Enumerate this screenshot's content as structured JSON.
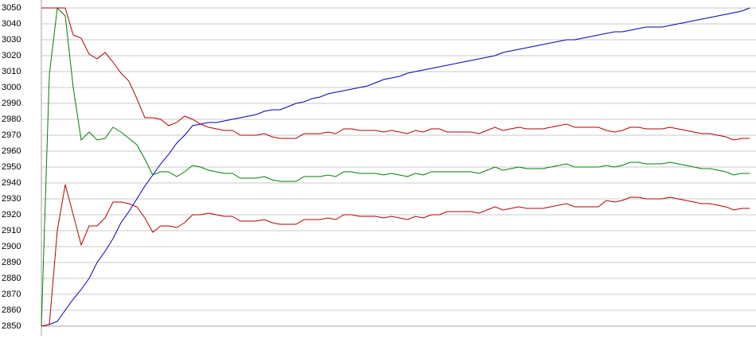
{
  "chart_data": {
    "type": "line",
    "categories": [
      null,
      null,
      null,
      null,
      null,
      null,
      null,
      null,
      null,
      null,
      null,
      null,
      null,
      null,
      null,
      null,
      null,
      null,
      null,
      null,
      null,
      null,
      null,
      null,
      null,
      null,
      null,
      null,
      null,
      null,
      null,
      null,
      null,
      null,
      null,
      null,
      null,
      null,
      null,
      null,
      null,
      null,
      null,
      null,
      null,
      null,
      null,
      null,
      null,
      null,
      null,
      null,
      null,
      null,
      null,
      null,
      null,
      null,
      null,
      null,
      null,
      null,
      null,
      null,
      null,
      null,
      null,
      null,
      null,
      null,
      null,
      null,
      null,
      null,
      null,
      null,
      null,
      null,
      null,
      null,
      null,
      null,
      null,
      null,
      null,
      null,
      null,
      null,
      null,
      null
    ],
    "series": [
      {
        "color": "#0000b4",
        "values": [
          2850,
          2851,
          2853,
          2860,
          2867,
          2873,
          2880,
          2890,
          2897,
          2905,
          2915,
          2922,
          2930,
          2938,
          2945,
          2952,
          2958,
          2965,
          2970,
          2976,
          2977,
          2978,
          2978,
          2979,
          2980,
          2981,
          2982,
          2983,
          2985,
          2986,
          2986,
          2988,
          2990,
          2991,
          2993,
          2994,
          2996,
          2997,
          2998,
          2999,
          3000,
          3001,
          3003,
          3005,
          3006,
          3007,
          3009,
          3010,
          3011,
          3012,
          3013,
          3014,
          3015,
          3016,
          3017,
          3018,
          3019,
          3020,
          3022,
          3023,
          3024,
          3025,
          3026,
          3027,
          3028,
          3029,
          3030,
          3030,
          3031,
          3032,
          3033,
          3034,
          3035,
          3035,
          3036,
          3037,
          3038,
          3038,
          3038,
          3039,
          3040,
          3041,
          3042,
          3043,
          3044,
          3045,
          3046,
          3047,
          3048,
          3050
        ]
      },
      {
        "color": "#008000",
        "values": [
          2850,
          3008,
          3050,
          3045,
          3000,
          2967,
          2972,
          2967,
          2968,
          2975,
          2972,
          2968,
          2964,
          2955,
          2945,
          2947,
          2947,
          2944,
          2947,
          2951,
          2950,
          2948,
          2947,
          2946,
          2946,
          2943,
          2943,
          2943,
          2944,
          2942,
          2941,
          2941,
          2941,
          2944,
          2944,
          2944,
          2945,
          2944,
          2947,
          2947,
          2946,
          2946,
          2946,
          2945,
          2946,
          2945,
          2944,
          2946,
          2945,
          2947,
          2947,
          2947,
          2947,
          2947,
          2947,
          2946,
          2948,
          2950,
          2948,
          2949,
          2950,
          2949,
          2949,
          2949,
          2950,
          2951,
          2952,
          2950,
          2950,
          2950,
          2950,
          2951,
          2950,
          2951,
          2953,
          2953,
          2952,
          2952,
          2952,
          2953,
          2952,
          2951,
          2950,
          2949,
          2949,
          2948,
          2947,
          2945,
          2946,
          2946
        ]
      },
      {
        "color": "#b40000",
        "values": [
          3050,
          3050,
          3050,
          3050,
          3033,
          3031,
          3021,
          3018,
          3022,
          3016,
          3009,
          3004,
          2993,
          2981,
          2981,
          2980,
          2976,
          2978,
          2982,
          2980,
          2977,
          2975,
          2974,
          2973,
          2973,
          2970,
          2970,
          2970,
          2971,
          2969,
          2968,
          2968,
          2968,
          2971,
          2971,
          2971,
          2972,
          2971,
          2974,
          2974,
          2973,
          2973,
          2973,
          2972,
          2973,
          2972,
          2971,
          2973,
          2972,
          2974,
          2974,
          2972,
          2972,
          2972,
          2972,
          2971,
          2973,
          2975,
          2973,
          2974,
          2975,
          2974,
          2974,
          2974,
          2975,
          2976,
          2977,
          2975,
          2975,
          2975,
          2975,
          2973,
          2972,
          2973,
          2975,
          2975,
          2974,
          2974,
          2974,
          2975,
          2974,
          2973,
          2972,
          2971,
          2971,
          2970,
          2969,
          2967,
          2968,
          2968
        ]
      },
      {
        "color": "#b40000",
        "values": [
          2850,
          2851,
          2910,
          2939,
          2920,
          2901,
          2913,
          2913,
          2918,
          2928,
          2928,
          2927,
          2925,
          2918,
          2909,
          2913,
          2913,
          2912,
          2915,
          2920,
          2920,
          2921,
          2920,
          2919,
          2919,
          2916,
          2916,
          2916,
          2917,
          2915,
          2914,
          2914,
          2914,
          2917,
          2917,
          2917,
          2918,
          2917,
          2920,
          2920,
          2919,
          2919,
          2919,
          2918,
          2919,
          2918,
          2917,
          2919,
          2918,
          2920,
          2920,
          2922,
          2922,
          2922,
          2922,
          2921,
          2923,
          2925,
          2923,
          2924,
          2925,
          2924,
          2924,
          2924,
          2925,
          2926,
          2927,
          2925,
          2925,
          2925,
          2925,
          2929,
          2928,
          2929,
          2931,
          2931,
          2930,
          2930,
          2930,
          2931,
          2930,
          2929,
          2928,
          2927,
          2927,
          2926,
          2925,
          2923,
          2924,
          2924
        ]
      }
    ],
    "ylim": [
      2850,
      3050
    ],
    "yticks": [
      2850,
      2860,
      2870,
      2880,
      2890,
      2900,
      2910,
      2920,
      2930,
      2940,
      2950,
      2960,
      2970,
      2980,
      2990,
      3000,
      3010,
      3020,
      3030,
      3040,
      3050
    ],
    "grid": true
  }
}
